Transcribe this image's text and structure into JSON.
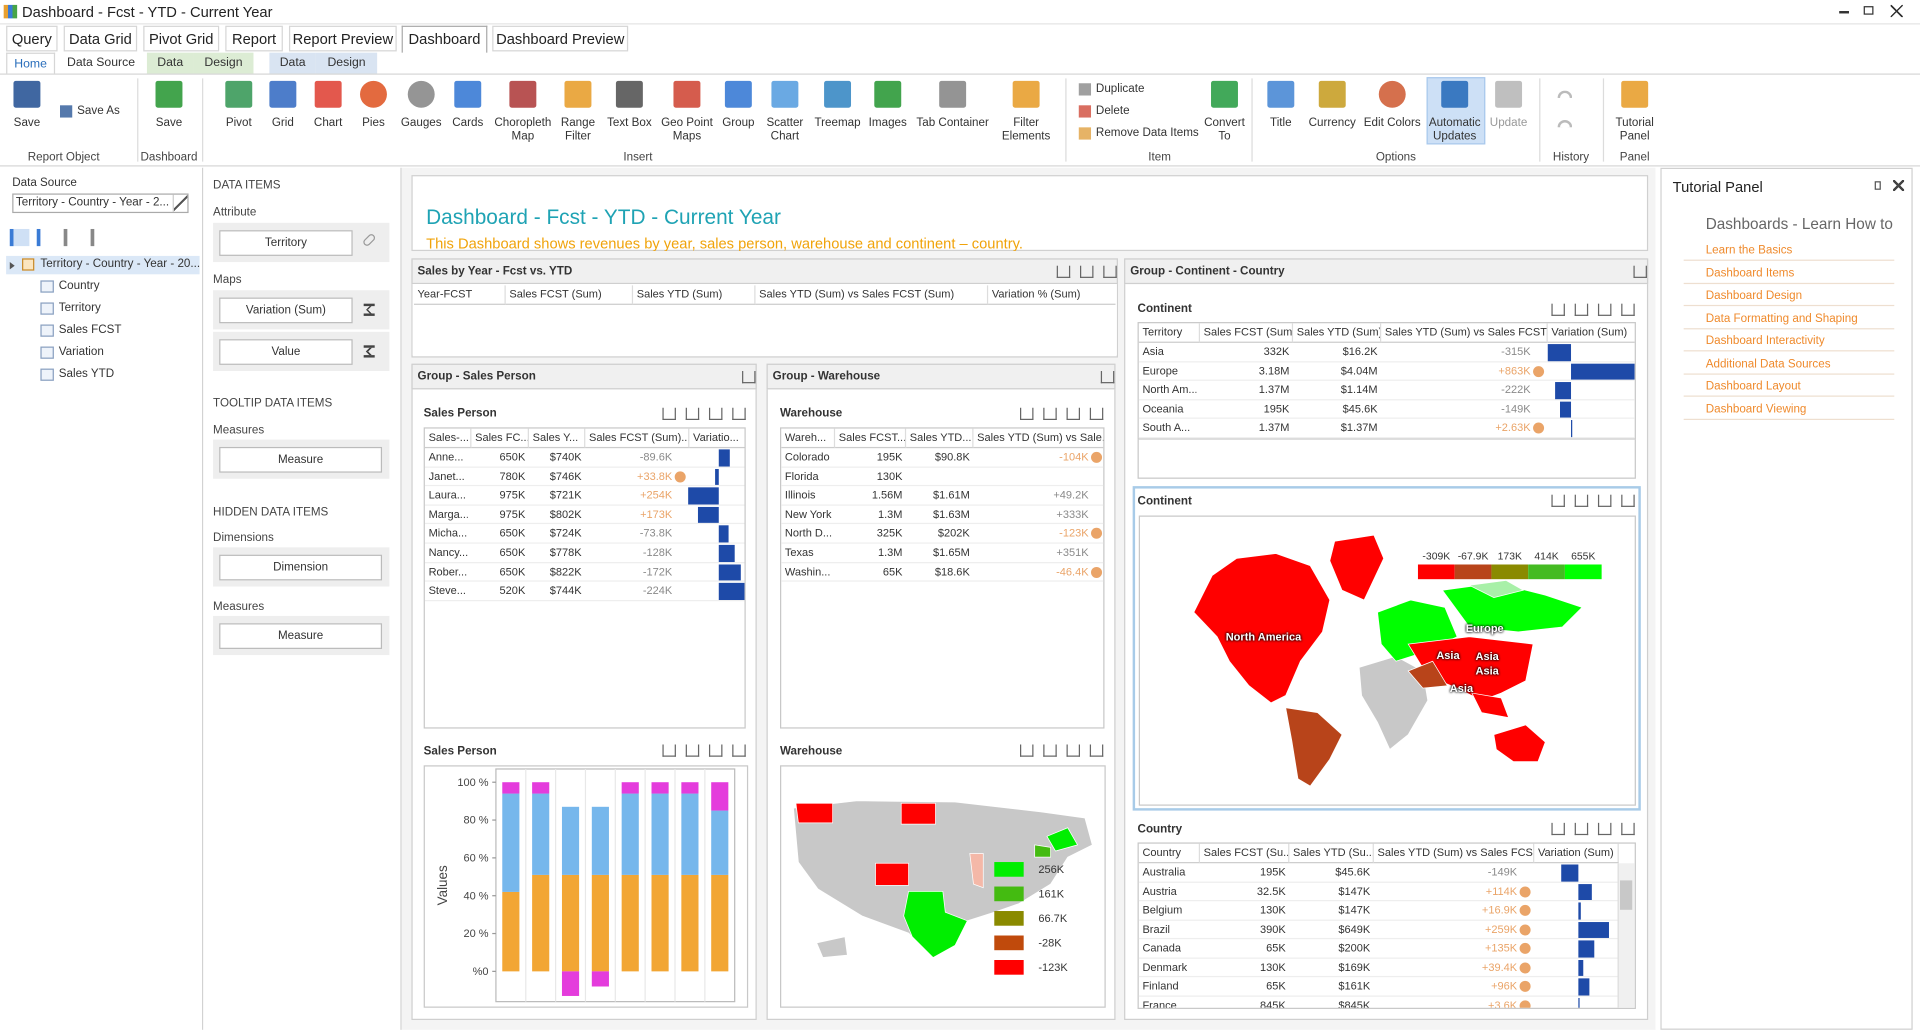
{
  "window": {
    "title": "Dashboard - Fcst - YTD - Current Year"
  },
  "tabs": [
    "Query",
    "Data Grid",
    "Pivot Grid",
    "Report",
    "Report Preview",
    "Dashboard",
    "Dashboard Preview"
  ],
  "subtabs": [
    "Home",
    "Data Source",
    "Data",
    "Design",
    "Data",
    "Design"
  ],
  "ribbon": {
    "buttons": [
      "Save",
      "Save",
      "Pivot",
      "Grid",
      "Chart",
      "Pies",
      "Gauges",
      "Cards",
      "Choropleth Map",
      "Range Filter",
      "Text Box",
      "Geo Point Maps",
      "Group",
      "Scatter Chart",
      "Treemap",
      "Images",
      "Tab Container",
      "Filter Elements",
      "Convert To",
      "Title",
      "Currency",
      "Edit Colors",
      "Automatic Updates",
      "Update",
      "Tutorial Panel"
    ],
    "small_buttons": [
      "Save As",
      "Duplicate",
      "Delete",
      "Remove Data Items"
    ],
    "groups": [
      "Report Object",
      "Dashboard",
      "Insert",
      "Item",
      "Options",
      "History",
      "Panel"
    ]
  },
  "data_source_panel": {
    "label": "Data Source",
    "selected": "Territory - Country - Year - 2...",
    "tree_root": "Territory - Country - Year - 20...",
    "fields": [
      "Country",
      "Territory",
      "Sales FCST",
      "Variation",
      "Sales YTD"
    ]
  },
  "data_items_panel": {
    "title": "DATA ITEMS",
    "attribute_label": "Attribute",
    "attribute": "Territory",
    "maps_label": "Maps",
    "maps": [
      "Variation (Sum)",
      "Value"
    ],
    "tooltip_title": "TOOLTIP DATA ITEMS",
    "tooltip_measures_label": "Measures",
    "tooltip_measure": "Measure",
    "hidden_title": "HIDDEN DATA ITEMS",
    "hidden_dimensions_label": "Dimensions",
    "hidden_dimension": "Dimension",
    "hidden_measures_label": "Measures",
    "hidden_measure": "Measure"
  },
  "dashboard": {
    "title": "Dashboard - Fcst - YTD - Current Year",
    "subtitle": "This Dashboard shows revenues by year, sales person, warehouse and continent – country.",
    "sales_by_year": {
      "title": "Sales by Year - Fcst vs. YTD",
      "columns": [
        "Year-FCST",
        "Sales FCST (Sum)",
        "Sales YTD (Sum)",
        "Sales YTD (Sum) vs Sales FCST (Sum)",
        "Variation % (Sum)"
      ]
    },
    "sales_person_group": {
      "title": "Group - Sales Person",
      "grid": {
        "title": "Sales Person",
        "columns": [
          "Sales-...",
          "Sales FC...",
          "Sales Y...",
          "Sales FCST (Sum)...",
          "Variatio..."
        ],
        "rows": [
          [
            "Anne...",
            "650K",
            "$740K",
            "-89.6K"
          ],
          [
            "Janet...",
            "780K",
            "$746K",
            "+33.8K"
          ],
          [
            "Laura...",
            "975K",
            "$721K",
            "+254K"
          ],
          [
            "Marga...",
            "975K",
            "$802K",
            "+173K"
          ],
          [
            "Micha...",
            "650K",
            "$724K",
            "-73.8K"
          ],
          [
            "Nancy...",
            "650K",
            "$778K",
            "-128K"
          ],
          [
            "Rober...",
            "650K",
            "$822K",
            "-172K"
          ],
          [
            "Steve...",
            "520K",
            "$744K",
            "-224K"
          ]
        ],
        "delta_colors": [
          "#8a8a8a",
          "#eaa468",
          "#eaa468",
          "#eaa468",
          "#8a8a8a",
          "#8a8a8a",
          "#8a8a8a",
          "#8a8a8a"
        ],
        "dots": [
          false,
          true,
          false,
          false,
          false,
          false,
          false,
          false
        ],
        "variation": [
          89600,
          -33800,
          -254000,
          -173000,
          73800,
          128000,
          172000,
          224000
        ]
      },
      "chart": {
        "type": "bar",
        "stacked": true,
        "title": "Sales Person",
        "y_label": "Values",
        "categories": [
          null,
          null,
          null,
          null,
          null,
          null,
          null,
          null
        ],
        "series": [
          {
            "color": "#f2a634",
            "values": [
              42,
              51,
              51,
              51,
              51,
              51,
              51,
              51
            ]
          },
          {
            "color": "#76b7ec",
            "values": [
              52,
              43,
              36,
              36,
              43,
              43,
              43,
              34
            ]
          },
          {
            "color": "#e43cdc",
            "values": [
              6,
              6,
              -13,
              -8,
              6,
              6,
              6,
              15
            ]
          }
        ],
        "ylim": [
          -16,
          107
        ],
        "yticks": [
          {
            "value": 0,
            "label": "%0"
          },
          {
            "value": 20,
            "label": "20 %"
          },
          {
            "value": 40,
            "label": "40 %"
          },
          {
            "value": 60,
            "label": "60 %"
          },
          {
            "value": 80,
            "label": "80 %"
          },
          {
            "value": 100,
            "label": "100 %"
          }
        ]
      }
    },
    "warehouse_group": {
      "title": "Group - Warehouse",
      "grid": {
        "title": "Warehouse",
        "columns": [
          "Wareh...",
          "Sales FCST...",
          "Sales YTD...",
          "Sales YTD (Sum) vs Sale..."
        ],
        "rows": [
          [
            "Colorado",
            "195K",
            "$90.8K",
            "-104K"
          ],
          [
            "Florida",
            "130K"
          ],
          [
            "Illinois",
            "1.56M",
            "$1.61M",
            "+49.2K"
          ],
          [
            "New York",
            "1.3M",
            "$1.63M",
            "+333K"
          ],
          [
            "North D...",
            "325K",
            "$202K",
            "-123K"
          ],
          [
            "Texas",
            "1.3M",
            "$1.65M",
            "+351K"
          ],
          [
            "Washin...",
            "65K",
            "$18.6K",
            "-46.4K"
          ]
        ],
        "delta_colors": [
          "#eaa468",
          null,
          "#8a8a8a",
          "#8a8a8a",
          "#eaa468",
          "#8a8a8a",
          "#eaa468"
        ],
        "dots": [
          true,
          false,
          false,
          false,
          true,
          false,
          true
        ]
      },
      "map": {
        "title": "Warehouse",
        "legend": [
          {
            "label": "256K",
            "color": "#00ee00"
          },
          {
            "label": "161K",
            "color": "#44bb11"
          },
          {
            "label": "66.7K",
            "color": "#8a8a00"
          },
          {
            "label": "-28K",
            "color": "#c04a0c"
          },
          {
            "label": "-123K",
            "color": "#ff0000"
          }
        ]
      }
    },
    "continent_group": {
      "title": "Group - Continent - Country",
      "grid": {
        "title": "Continent",
        "columns": [
          "Territory",
          "Sales FCST (Sum)",
          "Sales YTD (Sum)",
          "Sales YTD (Sum) vs Sales FCST...",
          "Variation (Sum)"
        ],
        "rows": [
          [
            "Asia",
            "332K",
            "$16.2K",
            "-315K"
          ],
          [
            "Europe",
            "3.18M",
            "$4.04M",
            "+863K"
          ],
          [
            "North Am...",
            "1.37M",
            "$1.14M",
            "-222K"
          ],
          [
            "Oceania",
            "195K",
            "$45.6K",
            "-149K"
          ],
          [
            "South A...",
            "1.37M",
            "$1.37M",
            "+2.63K"
          ]
        ],
        "delta_colors": [
          "#8a8a8a",
          "#eaa468",
          "#8a8a8a",
          "#8a8a8a",
          "#eaa468"
        ],
        "dots": [
          false,
          true,
          false,
          false,
          true
        ],
        "variation": [
          -315000,
          863000,
          -222000,
          -149000,
          2630
        ]
      },
      "map": {
        "title": "Continent",
        "legend": [
          {
            "label": "-309K",
            "color": "#ff0000"
          },
          {
            "label": "-67.9K",
            "color": "#b8441a"
          },
          {
            "label": "173K",
            "color": "#8a8a00"
          },
          {
            "label": "414K",
            "color": "#44bb22"
          },
          {
            "label": "655K",
            "color": "#00ff00"
          }
        ],
        "labels": [
          "North America",
          "Europe",
          "Asia",
          "Asia",
          "Asia",
          "Asia"
        ]
      },
      "country_grid": {
        "title": "Country",
        "columns": [
          "Country",
          "Sales FCST (Su...",
          "Sales YTD (Su...",
          "Sales YTD (Sum) vs Sales FCS...",
          "Variation (Sum)"
        ],
        "rows": [
          [
            "Australia",
            "195K",
            "$45.6K",
            "-149K"
          ],
          [
            "Austria",
            "32.5K",
            "$147K",
            "+114K"
          ],
          [
            "Belgium",
            "130K",
            "$147K",
            "+16.9K"
          ],
          [
            "Brazil",
            "390K",
            "$649K",
            "+259K"
          ],
          [
            "Canada",
            "65K",
            "$200K",
            "+135K"
          ],
          [
            "Denmark",
            "130K",
            "$169K",
            "+39.4K"
          ],
          [
            "Finland",
            "65K",
            "$161K",
            "+96K"
          ],
          [
            "France",
            "845K",
            "$845K",
            "+3.6K"
          ]
        ],
        "delta_colors": [
          "#8a8a8a",
          "#eaa468",
          "#eaa468",
          "#eaa468",
          "#eaa468",
          "#eaa468",
          "#eaa468",
          "#eaa468"
        ],
        "dots": [
          false,
          true,
          true,
          true,
          true,
          true,
          true,
          true
        ],
        "variation": [
          -149000,
          114000,
          16900,
          259000,
          135000,
          39400,
          96000,
          3600
        ]
      }
    }
  },
  "tutorial": {
    "title": "Tutorial Panel",
    "heading": "Dashboards - Learn How to",
    "links": [
      "Learn the Basics",
      "Dashboard Items",
      "Dashboard Design",
      "Data Formatting and Shaping",
      "Dashboard Interactivity",
      "Additional Data Sources",
      "Dashboard Layout",
      "Dashboard Viewing"
    ]
  }
}
